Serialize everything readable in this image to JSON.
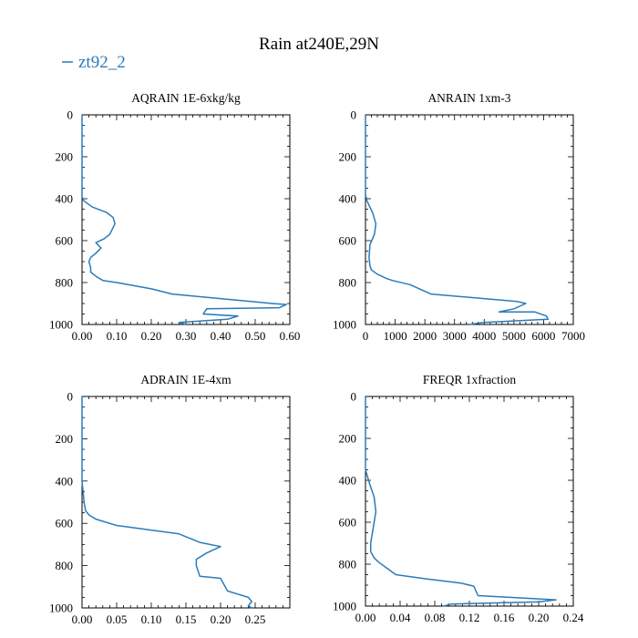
{
  "page": {
    "title": "Rain at240E,29N"
  },
  "legend": {
    "label": "zt92_2",
    "color": "#2b7bb9"
  },
  "chart_data": [
    {
      "type": "line",
      "title": "AQRAIN  1E-6xkg/kg",
      "xlim": [
        0,
        0.6
      ],
      "xticks": [
        "0.00",
        "0.10",
        "0.20",
        "0.30",
        "0.40",
        "0.50",
        "0.60"
      ],
      "ylim": [
        0,
        1000
      ],
      "yticks": [
        "0",
        "200",
        "400",
        "600",
        "800",
        "1000"
      ],
      "y_inverted": true,
      "series": [
        {
          "name": "zt92_2",
          "points": [
            [
              0.0,
              0
            ],
            [
              0.0,
              390
            ],
            [
              0.005,
              410
            ],
            [
              0.03,
              440
            ],
            [
              0.07,
              465
            ],
            [
              0.09,
              490
            ],
            [
              0.095,
              520
            ],
            [
              0.08,
              570
            ],
            [
              0.065,
              590
            ],
            [
              0.04,
              610
            ],
            [
              0.055,
              635
            ],
            [
              0.04,
              660
            ],
            [
              0.025,
              680
            ],
            [
              0.02,
              700
            ],
            [
              0.025,
              730
            ],
            [
              0.025,
              750
            ],
            [
              0.04,
              770
            ],
            [
              0.06,
              790
            ],
            [
              0.1,
              800
            ],
            [
              0.2,
              830
            ],
            [
              0.26,
              855
            ],
            [
              0.55,
              900
            ],
            [
              0.59,
              905
            ],
            [
              0.57,
              920
            ],
            [
              0.36,
              925
            ],
            [
              0.35,
              950
            ],
            [
              0.45,
              960
            ],
            [
              0.42,
              975
            ],
            [
              0.28,
              990
            ],
            [
              0.3,
              1000
            ]
          ]
        }
      ]
    },
    {
      "type": "line",
      "title": "ANRAIN  1xm-3",
      "xlim": [
        0,
        7000
      ],
      "xticks": [
        "0",
        "1000",
        "2000",
        "3000",
        "4000",
        "5000",
        "6000",
        "7000"
      ],
      "ylim": [
        0,
        1000
      ],
      "yticks": [
        "0",
        "200",
        "400",
        "600",
        "800",
        "1000"
      ],
      "y_inverted": true,
      "series": [
        {
          "name": "zt92_2",
          "points": [
            [
              0,
              0
            ],
            [
              0,
              380
            ],
            [
              50,
              410
            ],
            [
              250,
              470
            ],
            [
              350,
              520
            ],
            [
              300,
              570
            ],
            [
              150,
              620
            ],
            [
              120,
              680
            ],
            [
              150,
              720
            ],
            [
              200,
              740
            ],
            [
              400,
              760
            ],
            [
              700,
              780
            ],
            [
              900,
              790
            ],
            [
              1500,
              810
            ],
            [
              2200,
              855
            ],
            [
              5100,
              890
            ],
            [
              5400,
              900
            ],
            [
              5000,
              925
            ],
            [
              4500,
              940
            ],
            [
              5700,
              940
            ],
            [
              6100,
              960
            ],
            [
              6150,
              975
            ],
            [
              4000,
              990
            ],
            [
              3500,
              1000
            ]
          ]
        }
      ]
    },
    {
      "type": "line",
      "title": "ADRAIN  1E-4xm",
      "xlim": [
        0,
        0.3
      ],
      "xticks": [
        "0.00",
        "0.05",
        "0.10",
        "0.15",
        "0.20",
        "0.25"
      ],
      "ylim": [
        0,
        1000
      ],
      "yticks": [
        "0",
        "200",
        "400",
        "600",
        "800",
        "1000"
      ],
      "y_inverted": true,
      "series": [
        {
          "name": "zt92_2",
          "points": [
            [
              0.0,
              0
            ],
            [
              0.0,
              400
            ],
            [
              0.003,
              500
            ],
            [
              0.005,
              540
            ],
            [
              0.01,
              560
            ],
            [
              0.02,
              580
            ],
            [
              0.05,
              610
            ],
            [
              0.14,
              650
            ],
            [
              0.17,
              690
            ],
            [
              0.2,
              710
            ],
            [
              0.18,
              740
            ],
            [
              0.165,
              770
            ],
            [
              0.165,
              800
            ],
            [
              0.17,
              850
            ],
            [
              0.2,
              860
            ],
            [
              0.21,
              920
            ],
            [
              0.24,
              950
            ],
            [
              0.245,
              970
            ],
            [
              0.24,
              990
            ],
            [
              0.245,
              1000
            ]
          ]
        }
      ]
    },
    {
      "type": "line",
      "title": "FREQR  1xfraction",
      "xlim": [
        0,
        0.24
      ],
      "xticks": [
        "0.00",
        "0.04",
        "0.08",
        "0.12",
        "0.16",
        "0.20",
        "0.24"
      ],
      "ylim": [
        0,
        1000
      ],
      "yticks": [
        "0",
        "200",
        "400",
        "600",
        "800",
        "1000"
      ],
      "y_inverted": true,
      "series": [
        {
          "name": "zt92_2",
          "points": [
            [
              0.0,
              0
            ],
            [
              0.0,
              350
            ],
            [
              0.005,
              420
            ],
            [
              0.01,
              480
            ],
            [
              0.012,
              550
            ],
            [
              0.01,
              600
            ],
            [
              0.008,
              650
            ],
            [
              0.006,
              700
            ],
            [
              0.006,
              740
            ],
            [
              0.01,
              770
            ],
            [
              0.015,
              790
            ],
            [
              0.025,
              820
            ],
            [
              0.035,
              850
            ],
            [
              0.07,
              870
            ],
            [
              0.11,
              890
            ],
            [
              0.125,
              905
            ],
            [
              0.13,
              950
            ],
            [
              0.22,
              970
            ],
            [
              0.2,
              980
            ],
            [
              0.1,
              990
            ],
            [
              0.09,
              1000
            ]
          ]
        }
      ]
    }
  ]
}
